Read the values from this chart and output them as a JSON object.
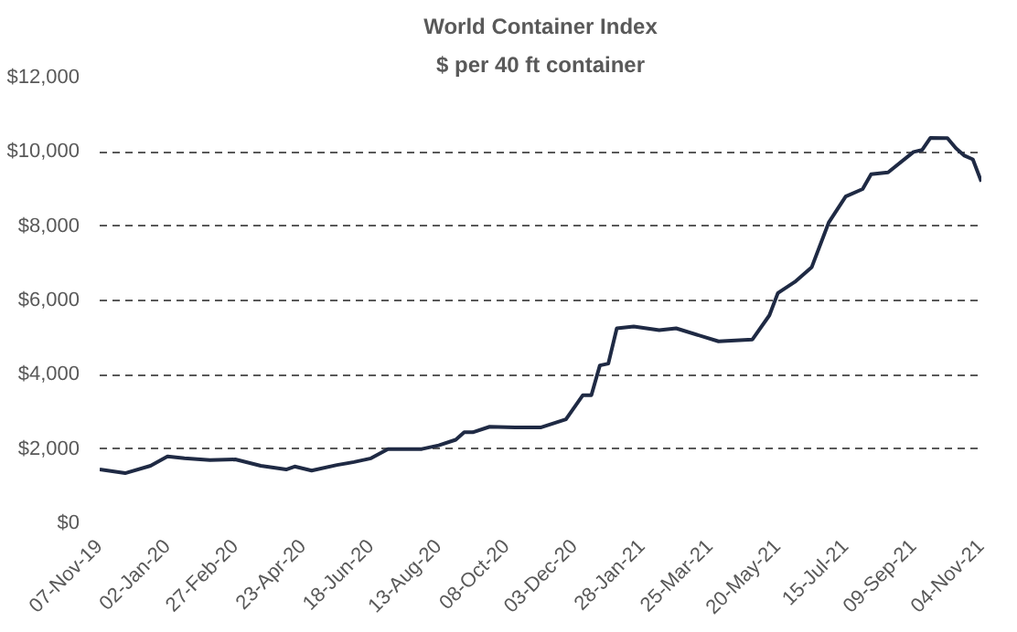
{
  "chart_data": {
    "type": "line",
    "title": "World Container Index",
    "subtitle": "$ per 40 ft container",
    "x": [
      "2019-11-07",
      "2019-11-28",
      "2019-12-19",
      "2020-01-02",
      "2020-01-16",
      "2020-02-06",
      "2020-02-27",
      "2020-03-19",
      "2020-04-09",
      "2020-04-16",
      "2020-04-30",
      "2020-05-21",
      "2020-06-04",
      "2020-06-18",
      "2020-07-02",
      "2020-07-30",
      "2020-08-13",
      "2020-08-27",
      "2020-09-03",
      "2020-09-10",
      "2020-09-24",
      "2020-10-15",
      "2020-11-05",
      "2020-11-26",
      "2020-12-10",
      "2020-12-17",
      "2020-12-24",
      "2020-12-31",
      "2021-01-07",
      "2021-01-21",
      "2021-02-11",
      "2021-02-25",
      "2021-04-01",
      "2021-04-29",
      "2021-05-13",
      "2021-05-20",
      "2021-06-03",
      "2021-06-17",
      "2021-07-01",
      "2021-07-15",
      "2021-07-29",
      "2021-08-05",
      "2021-08-19",
      "2021-09-09",
      "2021-09-16",
      "2021-09-23",
      "2021-10-07",
      "2021-10-14",
      "2021-10-21",
      "2021-10-28",
      "2021-11-04"
    ],
    "series": [
      {
        "color": "#1f2a44",
        "values": [
          1450,
          1350,
          1550,
          1800,
          1750,
          1700,
          1720,
          1550,
          1450,
          1530,
          1420,
          1570,
          1650,
          1750,
          2000,
          2000,
          2100,
          2250,
          2450,
          2450,
          2600,
          2580,
          2580,
          2800,
          3450,
          3450,
          4250,
          4300,
          5250,
          5300,
          5200,
          5250,
          4900,
          4950,
          5600,
          6200,
          6500,
          6900,
          8100,
          8800,
          9000,
          9400,
          9450,
          10000,
          10050,
          10380,
          10370,
          10100,
          9900,
          9800,
          9200
        ]
      }
    ],
    "xlim": [
      "2019-11-07",
      "2021-11-04"
    ],
    "xticks": [
      {
        "value": "2019-11-07",
        "label": "07-Nov-19"
      },
      {
        "value": "2020-01-02",
        "label": "02-Jan-20"
      },
      {
        "value": "2020-02-27",
        "label": "27-Feb-20"
      },
      {
        "value": "2020-04-23",
        "label": "23-Apr-20"
      },
      {
        "value": "2020-06-18",
        "label": "18-Jun-20"
      },
      {
        "value": "2020-08-13",
        "label": "13-Aug-20"
      },
      {
        "value": "2020-10-08",
        "label": "08-Oct-20"
      },
      {
        "value": "2020-12-03",
        "label": "03-Dec-20"
      },
      {
        "value": "2021-01-28",
        "label": "28-Jan-21"
      },
      {
        "value": "2021-03-25",
        "label": "25-Mar-21"
      },
      {
        "value": "2021-05-20",
        "label": "20-May-21"
      },
      {
        "value": "2021-07-15",
        "label": "15-Jul-21"
      },
      {
        "value": "2021-09-09",
        "label": "09-Sep-21"
      },
      {
        "value": "2021-11-04",
        "label": "04-Nov-21"
      }
    ],
    "ylim": [
      0,
      12000
    ],
    "yticks": [
      {
        "value": 0,
        "label": "$0"
      },
      {
        "value": 2000,
        "label": "$2,000"
      },
      {
        "value": 4000,
        "label": "$4,000"
      },
      {
        "value": 6000,
        "label": "$6,000"
      },
      {
        "value": 8000,
        "label": "$8,000"
      },
      {
        "value": 10000,
        "label": "$10,000"
      },
      {
        "value": 12000,
        "label": "$12,000"
      }
    ],
    "grid": "y",
    "line_style": "solid"
  }
}
